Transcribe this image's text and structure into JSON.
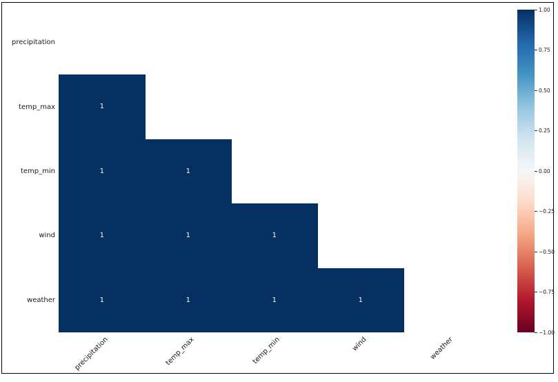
{
  "figure": {
    "background": "#ffffff",
    "border_color": "#000000"
  },
  "chart_data": {
    "type": "heatmap",
    "title": "",
    "xlabel": "",
    "ylabel": "",
    "rows": [
      "precipitation",
      "temp_max",
      "temp_min",
      "wind",
      "weather"
    ],
    "columns": [
      "precipitation",
      "temp_max",
      "temp_min",
      "wind",
      "weather"
    ],
    "matrix": [
      [
        null,
        null,
        null,
        null,
        null
      ],
      [
        1,
        null,
        null,
        null,
        null
      ],
      [
        1,
        1,
        null,
        null,
        null
      ],
      [
        1,
        1,
        1,
        null,
        null
      ],
      [
        1,
        1,
        1,
        1,
        null
      ]
    ],
    "mask": "upper-triangle-including-diagonal",
    "colormap": "RdBu",
    "vmin": -1,
    "vmax": 1,
    "cell_fill": "#053061",
    "annotation_color": "#ffffff",
    "colorbar": {
      "position": "right",
      "ticks": [
        "1.00",
        "0.75",
        "0.50",
        "0.25",
        "0.00",
        "−0.25",
        "−0.50",
        "−0.75",
        "−1.00"
      ],
      "gradient_stops": [
        "#053061",
        "#2166ac",
        "#4393c3",
        "#92c5de",
        "#d1e5f0",
        "#f7f7f7",
        "#fddbc7",
        "#f4a582",
        "#d6604d",
        "#b2182b",
        "#67001f"
      ]
    }
  }
}
